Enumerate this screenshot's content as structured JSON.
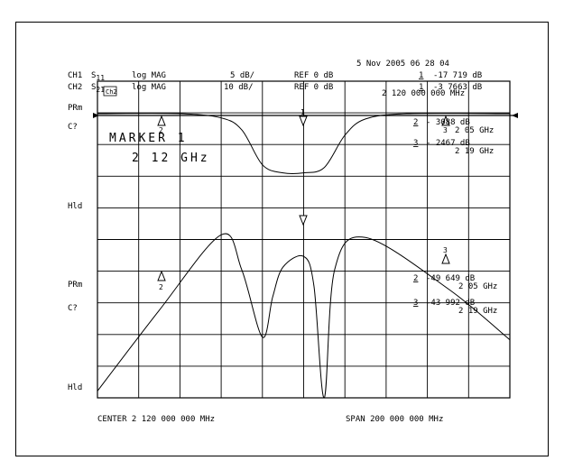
{
  "chart_data": {
    "type": "line",
    "date_line": "5 Nov 2005  06 28 04",
    "channels": [
      {
        "ch": "CH1",
        "param": "S",
        "sub": "11",
        "format": "log MAG",
        "scale": "5 dB/",
        "ref": "REF 0 dB",
        "marker_num": "1",
        "marker_value": "-17 719 dB"
      },
      {
        "ch": "CH2",
        "param": "S",
        "sub": "21",
        "format": "log MAG",
        "scale": "10 dB/",
        "ref": "REF 0 dB",
        "marker_num": "1",
        "marker_value": "-3 7663 dB"
      }
    ],
    "stimulus_readout": "2  120  000  000  MHz",
    "box_label": "Ch2",
    "left_labels": [
      "PRm",
      "C?",
      "Hld",
      "PRm",
      "C?",
      "Hld"
    ],
    "active_marker": {
      "title": "MARKER 1",
      "freq": "2 12 GHz"
    },
    "marker_table_ch2": [
      {
        "num": "2",
        "value": "- 3088  dB",
        "freq": "2 05 GHz"
      },
      {
        "num": "3",
        "value": "- 2467  dB",
        "freq": "2 19 GHz"
      }
    ],
    "marker_table_ch1": [
      {
        "num": "2",
        "value": "-49 649 dB",
        "freq": "2 05 GHz"
      },
      {
        "num": "3",
        "value": "-43 992 dB",
        "freq": "2 19 GHz"
      }
    ],
    "footer": {
      "center": "CENTER 2 120 000 000 MHz",
      "span": "SPAN  200 000 000 MHz"
    },
    "x_unit": "GHz",
    "x_range": [
      2.02,
      2.22
    ],
    "y_range_db": [
      -50,
      0
    ],
    "series": [
      {
        "values": [
          [
            2.02,
            -1
          ],
          [
            2.06,
            -1
          ],
          [
            2.08,
            -1.8
          ],
          [
            2.09,
            -4
          ],
          [
            2.1,
            -10.5
          ],
          [
            2.11,
            -12
          ],
          [
            2.12,
            -12
          ],
          [
            2.13,
            -11
          ],
          [
            2.14,
            -5
          ],
          [
            2.15,
            -2
          ],
          [
            2.17,
            -1
          ],
          [
            2.22,
            -1
          ]
        ]
      },
      {
        "values": [
          [
            2.02,
            -52.5
          ],
          [
            2.05,
            -37.5
          ],
          [
            2.08,
            -23.5
          ],
          [
            2.09,
            -30
          ],
          [
            2.1,
            -42.5
          ],
          [
            2.105,
            -35
          ],
          [
            2.11,
            -29.5
          ],
          [
            2.12,
            -27.5
          ],
          [
            2.125,
            -33
          ],
          [
            2.13,
            -57
          ],
          [
            2.135,
            -30
          ],
          [
            2.15,
            -24
          ],
          [
            2.19,
            -33.5
          ],
          [
            2.22,
            -43
          ]
        ]
      }
    ],
    "grid": true
  }
}
